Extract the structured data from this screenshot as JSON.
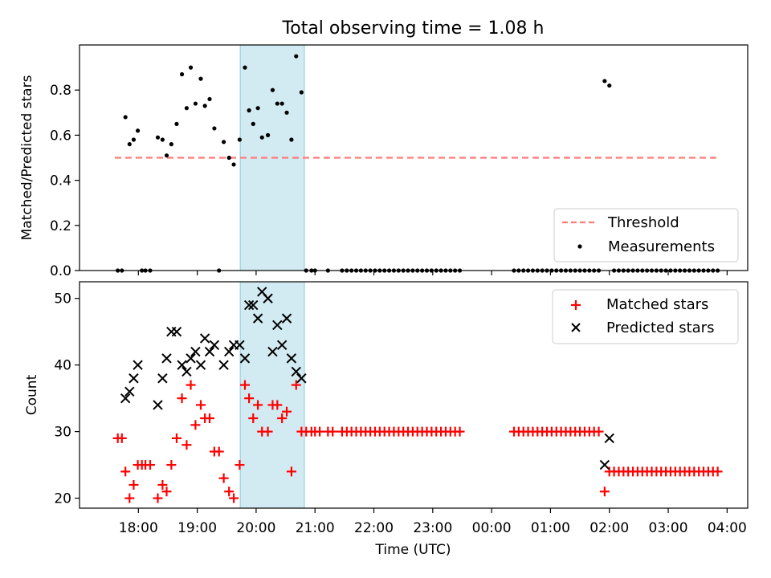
{
  "chart_data": [
    {
      "type": "scatter",
      "title": "Total observing time = 1.08 h",
      "xlabel": "",
      "ylabel": "Matched/Predicted stars",
      "ylim": [
        0,
        1.0
      ],
      "yticks": [
        "0.0",
        "0.2",
        "0.4",
        "0.6",
        "0.8"
      ],
      "threshold": {
        "name": "Threshold",
        "value": 0.5,
        "x_range": [
          17.6,
          27.85
        ],
        "color": "#ff7b7b"
      },
      "highlight": {
        "x_range": [
          19.73,
          20.82
        ],
        "color": "#add8e6"
      },
      "legend": [
        "Threshold",
        "Measurements"
      ],
      "legend_position": "lower right",
      "series": [
        {
          "name": "Measurements",
          "marker": "dot",
          "color": "#000000",
          "points": [
            [
              17.65,
              0
            ],
            [
              17.72,
              0
            ],
            [
              17.78,
              0.68
            ],
            [
              17.85,
              0.56
            ],
            [
              17.92,
              0.58
            ],
            [
              17.99,
              0.62
            ],
            [
              18.06,
              0
            ],
            [
              18.12,
              0
            ],
            [
              18.2,
              0
            ],
            [
              18.33,
              0.59
            ],
            [
              18.41,
              0.58
            ],
            [
              18.48,
              0.51
            ],
            [
              18.56,
              0.56
            ],
            [
              18.65,
              0.65
            ],
            [
              18.74,
              0.87
            ],
            [
              18.82,
              0.72
            ],
            [
              18.89,
              0.9
            ],
            [
              18.97,
              0.74
            ],
            [
              19.06,
              0.85
            ],
            [
              19.13,
              0.73
            ],
            [
              19.21,
              0.76
            ],
            [
              19.29,
              0.63
            ],
            [
              19.37,
              0
            ],
            [
              19.45,
              0.57
            ],
            [
              19.54,
              0.5
            ],
            [
              19.62,
              0.47
            ],
            [
              19.72,
              0.58
            ],
            [
              19.81,
              0.9
            ],
            [
              19.88,
              0.71
            ],
            [
              19.95,
              0.65
            ],
            [
              20.03,
              0.72
            ],
            [
              20.1,
              0.59
            ],
            [
              20.2,
              0.6
            ],
            [
              20.28,
              0.8
            ],
            [
              20.36,
              0.74
            ],
            [
              20.44,
              0.74
            ],
            [
              20.52,
              0.7
            ],
            [
              20.6,
              0.58
            ],
            [
              20.68,
              0.95
            ],
            [
              20.77,
              0.79
            ],
            [
              20.85,
              0
            ],
            [
              20.94,
              0
            ],
            [
              21.0,
              0
            ],
            [
              21.22,
              0
            ],
            [
              21.46,
              0
            ],
            [
              21.54,
              0
            ],
            [
              21.62,
              0
            ],
            [
              21.7,
              0
            ],
            [
              21.78,
              0
            ],
            [
              21.86,
              0
            ],
            [
              21.94,
              0
            ],
            [
              22.02,
              0
            ],
            [
              22.1,
              0
            ],
            [
              22.18,
              0
            ],
            [
              22.26,
              0
            ],
            [
              22.34,
              0
            ],
            [
              22.42,
              0
            ],
            [
              22.5,
              0
            ],
            [
              22.58,
              0
            ],
            [
              22.66,
              0
            ],
            [
              22.74,
              0
            ],
            [
              22.82,
              0
            ],
            [
              22.9,
              0
            ],
            [
              22.98,
              0
            ],
            [
              23.06,
              0
            ],
            [
              23.14,
              0
            ],
            [
              23.22,
              0
            ],
            [
              23.3,
              0
            ],
            [
              23.38,
              0
            ],
            [
              23.46,
              0
            ],
            [
              24.38,
              0
            ],
            [
              24.46,
              0
            ],
            [
              24.54,
              0
            ],
            [
              24.62,
              0
            ],
            [
              24.7,
              0
            ],
            [
              24.78,
              0
            ],
            [
              24.86,
              0
            ],
            [
              24.94,
              0
            ],
            [
              25.02,
              0
            ],
            [
              25.1,
              0
            ],
            [
              25.18,
              0
            ],
            [
              25.26,
              0
            ],
            [
              25.34,
              0
            ],
            [
              25.42,
              0
            ],
            [
              25.5,
              0
            ],
            [
              25.58,
              0
            ],
            [
              25.66,
              0
            ],
            [
              25.74,
              0
            ],
            [
              25.82,
              0
            ],
            [
              25.92,
              0.84
            ],
            [
              26.0,
              0.82
            ],
            [
              26.08,
              0
            ],
            [
              26.16,
              0
            ],
            [
              26.24,
              0
            ],
            [
              26.32,
              0
            ],
            [
              26.4,
              0
            ],
            [
              26.48,
              0
            ],
            [
              26.56,
              0
            ],
            [
              26.64,
              0
            ],
            [
              26.72,
              0
            ],
            [
              26.8,
              0
            ],
            [
              26.88,
              0
            ],
            [
              26.96,
              0
            ],
            [
              27.04,
              0
            ],
            [
              27.12,
              0
            ],
            [
              27.2,
              0
            ],
            [
              27.28,
              0
            ],
            [
              27.36,
              0
            ],
            [
              27.44,
              0
            ],
            [
              27.52,
              0
            ],
            [
              27.6,
              0
            ],
            [
              27.68,
              0
            ],
            [
              27.76,
              0
            ],
            [
              27.84,
              0
            ]
          ]
        }
      ]
    },
    {
      "type": "scatter",
      "title": "",
      "xlabel": "Time (UTC)",
      "ylabel": "Count",
      "ylim": [
        18.5,
        52.5
      ],
      "yticks": [
        20,
        30,
        40,
        50
      ],
      "xlim": [
        17.0,
        28.35
      ],
      "xtick_values": [
        18,
        19,
        20,
        21,
        22,
        23,
        24,
        25,
        26,
        27,
        28
      ],
      "xtick_labels": [
        "18:00",
        "19:00",
        "20:00",
        "21:00",
        "22:00",
        "23:00",
        "00:00",
        "01:00",
        "02:00",
        "03:00",
        "04:00"
      ],
      "highlight": {
        "x_range": [
          19.73,
          20.82
        ],
        "color": "#add8e6"
      },
      "legend": [
        "Matched stars",
        "Predicted stars"
      ],
      "legend_position": "upper right",
      "series": [
        {
          "name": "Matched stars",
          "marker": "plus",
          "color": "#ff0000",
          "points": [
            [
              17.65,
              29
            ],
            [
              17.72,
              29
            ],
            [
              17.78,
              24
            ],
            [
              17.85,
              20
            ],
            [
              17.92,
              22
            ],
            [
              17.99,
              25
            ],
            [
              18.06,
              25
            ],
            [
              18.12,
              25
            ],
            [
              18.2,
              25
            ],
            [
              18.33,
              20
            ],
            [
              18.41,
              22
            ],
            [
              18.48,
              21
            ],
            [
              18.56,
              25
            ],
            [
              18.65,
              29
            ],
            [
              18.74,
              35
            ],
            [
              18.82,
              28
            ],
            [
              18.89,
              37
            ],
            [
              18.97,
              31
            ],
            [
              19.06,
              34
            ],
            [
              19.13,
              32
            ],
            [
              19.21,
              32
            ],
            [
              19.29,
              27
            ],
            [
              19.37,
              27
            ],
            [
              19.45,
              23
            ],
            [
              19.54,
              21
            ],
            [
              19.62,
              20
            ],
            [
              19.72,
              25
            ],
            [
              19.81,
              37
            ],
            [
              19.88,
              35
            ],
            [
              19.95,
              32
            ],
            [
              20.03,
              34
            ],
            [
              20.1,
              30
            ],
            [
              20.2,
              30
            ],
            [
              20.28,
              34
            ],
            [
              20.36,
              34
            ],
            [
              20.44,
              32
            ],
            [
              20.52,
              33
            ],
            [
              20.6,
              24
            ],
            [
              20.68,
              37
            ],
            [
              20.77,
              30
            ],
            [
              20.85,
              30
            ],
            [
              20.94,
              30
            ],
            [
              21.0,
              30
            ],
            [
              21.08,
              30
            ],
            [
              21.22,
              30
            ],
            [
              21.3,
              30
            ],
            [
              21.46,
              30
            ],
            [
              21.54,
              30
            ],
            [
              21.62,
              30
            ],
            [
              21.7,
              30
            ],
            [
              21.78,
              30
            ],
            [
              21.86,
              30
            ],
            [
              21.94,
              30
            ],
            [
              22.02,
              30
            ],
            [
              22.1,
              30
            ],
            [
              22.18,
              30
            ],
            [
              22.26,
              30
            ],
            [
              22.34,
              30
            ],
            [
              22.42,
              30
            ],
            [
              22.5,
              30
            ],
            [
              22.58,
              30
            ],
            [
              22.66,
              30
            ],
            [
              22.74,
              30
            ],
            [
              22.82,
              30
            ],
            [
              22.9,
              30
            ],
            [
              22.98,
              30
            ],
            [
              23.06,
              30
            ],
            [
              23.14,
              30
            ],
            [
              23.22,
              30
            ],
            [
              23.3,
              30
            ],
            [
              23.38,
              30
            ],
            [
              23.46,
              30
            ],
            [
              24.38,
              30
            ],
            [
              24.46,
              30
            ],
            [
              24.54,
              30
            ],
            [
              24.62,
              30
            ],
            [
              24.7,
              30
            ],
            [
              24.78,
              30
            ],
            [
              24.86,
              30
            ],
            [
              24.94,
              30
            ],
            [
              25.02,
              30
            ],
            [
              25.1,
              30
            ],
            [
              25.18,
              30
            ],
            [
              25.26,
              30
            ],
            [
              25.34,
              30
            ],
            [
              25.42,
              30
            ],
            [
              25.5,
              30
            ],
            [
              25.58,
              30
            ],
            [
              25.66,
              30
            ],
            [
              25.74,
              30
            ],
            [
              25.82,
              30
            ],
            [
              25.92,
              21
            ],
            [
              26.0,
              24
            ],
            [
              26.08,
              24
            ],
            [
              26.16,
              24
            ],
            [
              26.24,
              24
            ],
            [
              26.32,
              24
            ],
            [
              26.4,
              24
            ],
            [
              26.48,
              24
            ],
            [
              26.56,
              24
            ],
            [
              26.64,
              24
            ],
            [
              26.72,
              24
            ],
            [
              26.8,
              24
            ],
            [
              26.88,
              24
            ],
            [
              26.96,
              24
            ],
            [
              27.04,
              24
            ],
            [
              27.12,
              24
            ],
            [
              27.2,
              24
            ],
            [
              27.28,
              24
            ],
            [
              27.36,
              24
            ],
            [
              27.44,
              24
            ],
            [
              27.52,
              24
            ],
            [
              27.6,
              24
            ],
            [
              27.68,
              24
            ],
            [
              27.76,
              24
            ],
            [
              27.84,
              24
            ]
          ]
        },
        {
          "name": "Predicted stars",
          "marker": "x",
          "color": "#000000",
          "points": [
            [
              17.78,
              35
            ],
            [
              17.85,
              36
            ],
            [
              17.92,
              38
            ],
            [
              17.99,
              40
            ],
            [
              18.33,
              34
            ],
            [
              18.41,
              38
            ],
            [
              18.48,
              41
            ],
            [
              18.56,
              45
            ],
            [
              18.65,
              45
            ],
            [
              18.74,
              40
            ],
            [
              18.82,
              39
            ],
            [
              18.89,
              41
            ],
            [
              18.97,
              42
            ],
            [
              19.06,
              40
            ],
            [
              19.13,
              44
            ],
            [
              19.21,
              42
            ],
            [
              19.29,
              43
            ],
            [
              19.45,
              40
            ],
            [
              19.54,
              42
            ],
            [
              19.62,
              43
            ],
            [
              19.72,
              43
            ],
            [
              19.81,
              41
            ],
            [
              19.88,
              49
            ],
            [
              19.95,
              49
            ],
            [
              20.03,
              47
            ],
            [
              20.1,
              51
            ],
            [
              20.2,
              50
            ],
            [
              20.28,
              42
            ],
            [
              20.36,
              46
            ],
            [
              20.44,
              43
            ],
            [
              20.52,
              47
            ],
            [
              20.6,
              41
            ],
            [
              20.68,
              39
            ],
            [
              20.77,
              38
            ],
            [
              25.92,
              25
            ],
            [
              26.0,
              29
            ]
          ]
        }
      ]
    }
  ]
}
